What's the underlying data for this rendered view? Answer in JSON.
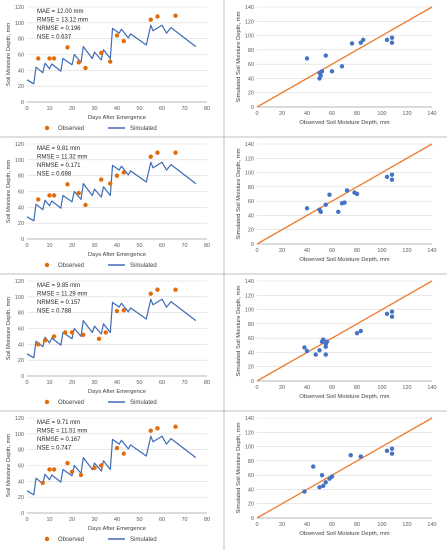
{
  "figure": {
    "ts_xlabel": "Days After Emergence",
    "ts_ylabel": "Soil Moisture Depth, mm",
    "sc_xlabel": "Observed Soil Moisture Depth, mm",
    "sc_ylabel": "Simulated Soil Moisture Depth, mm",
    "legend": {
      "observed": "Observed",
      "simulated": "Simulated"
    },
    "colors": {
      "observed": "#e36c0a",
      "simulated": "#3f6bb5",
      "scatter_points": "#4472c4",
      "one_to_one_line": "#ed7d31",
      "grid": "#d9d9d9",
      "border": "#bfbfbf"
    }
  },
  "chart_data": [
    {
      "type": "line",
      "panel": "row1-time-series",
      "stats": [
        "MAE = 12.00 mm",
        "RMSE = 13.12 mm",
        "NRMSE = 0.196",
        "NSE = 0.637"
      ],
      "xlim": [
        0,
        80
      ],
      "ylim": [
        0,
        120
      ],
      "xticks": [
        0,
        10,
        20,
        30,
        40,
        50,
        60,
        70,
        80
      ],
      "yticks": [
        0,
        20,
        40,
        60,
        80,
        100,
        120
      ],
      "series": [
        {
          "name": "Observed",
          "kind": "scatter",
          "x": [
            5,
            10,
            12,
            18,
            23,
            26,
            33,
            37,
            40,
            43,
            55,
            58,
            66
          ],
          "y": [
            55,
            55,
            55,
            69,
            50,
            43,
            62,
            51,
            84,
            77,
            104,
            108,
            109
          ]
        },
        {
          "name": "Simulated",
          "kind": "line",
          "x": [
            0,
            3,
            4,
            7,
            8,
            10,
            11,
            15,
            16,
            20,
            21,
            24,
            25,
            29,
            30,
            33,
            34,
            37,
            38,
            41,
            42,
            45,
            46,
            53,
            55,
            56,
            60,
            62,
            64,
            75
          ],
          "y": [
            28,
            23,
            44,
            37,
            49,
            42,
            48,
            39,
            55,
            47,
            60,
            50,
            70,
            55,
            63,
            53,
            66,
            55,
            93,
            87,
            92,
            81,
            86,
            72,
            97,
            90,
            97,
            87,
            94,
            70
          ]
        }
      ]
    },
    {
      "type": "scatter",
      "panel": "row1-observed-vs-simulated",
      "xlim": [
        0,
        140
      ],
      "ylim": [
        0,
        140
      ],
      "xticks": [
        0,
        20,
        40,
        60,
        80,
        100,
        120,
        140
      ],
      "yticks": [
        0,
        20,
        40,
        60,
        80,
        100,
        120,
        140
      ],
      "x": [
        40,
        50,
        51,
        50,
        52,
        55,
        60,
        68,
        76,
        83,
        85,
        104,
        108,
        108
      ],
      "y": [
        68,
        40,
        44,
        48,
        50,
        72,
        50,
        57,
        89,
        90,
        94,
        94,
        90,
        97
      ]
    },
    {
      "type": "line",
      "panel": "row2-time-series",
      "stats": [
        "MAE = 9.81 mm",
        "RMSE = 11.32 mm",
        "NRMSE = 0.171",
        "NSE = 0.698"
      ],
      "xlim": [
        0,
        80
      ],
      "ylim": [
        0,
        120
      ],
      "xticks": [
        0,
        10,
        20,
        30,
        40,
        50,
        60,
        70,
        80
      ],
      "yticks": [
        0,
        20,
        40,
        60,
        80,
        100,
        120
      ],
      "series": [
        {
          "name": "Observed",
          "kind": "scatter",
          "x": [
            5,
            10,
            12,
            18,
            23,
            26,
            33,
            37,
            40,
            43,
            55,
            58,
            66
          ],
          "y": [
            50,
            55,
            55,
            69,
            58,
            43,
            75,
            70,
            80,
            84,
            104,
            109,
            109
          ]
        },
        {
          "name": "Simulated",
          "kind": "line",
          "x": [
            0,
            3,
            4,
            7,
            8,
            10,
            11,
            15,
            16,
            20,
            21,
            24,
            25,
            29,
            30,
            33,
            34,
            37,
            38,
            41,
            42,
            45,
            46,
            53,
            55,
            56,
            60,
            62,
            64,
            75
          ],
          "y": [
            28,
            23,
            44,
            37,
            49,
            42,
            48,
            39,
            55,
            47,
            60,
            50,
            70,
            55,
            63,
            53,
            66,
            55,
            93,
            87,
            92,
            81,
            86,
            72,
            97,
            90,
            97,
            87,
            94,
            70
          ]
        }
      ]
    },
    {
      "type": "scatter",
      "panel": "row2-observed-vs-simulated",
      "xlim": [
        0,
        140
      ],
      "ylim": [
        0,
        140
      ],
      "xticks": [
        0,
        20,
        40,
        60,
        80,
        100,
        120,
        140
      ],
      "yticks": [
        0,
        20,
        40,
        60,
        80,
        100,
        120,
        140
      ],
      "x": [
        40,
        50,
        51,
        55,
        58,
        65,
        68,
        70,
        72,
        78,
        80,
        104,
        108,
        108
      ],
      "y": [
        50,
        48,
        45,
        55,
        69,
        45,
        57,
        58,
        75,
        72,
        70,
        94,
        90,
        97
      ]
    },
    {
      "type": "line",
      "panel": "row3-time-series",
      "stats": [
        "MAE = 9.85 mm",
        "RMSE = 11.29 mm",
        "NRMSE = 0.157",
        "NSE = 0.788"
      ],
      "xlim": [
        0,
        80
      ],
      "ylim": [
        0,
        120
      ],
      "xticks": [
        0,
        10,
        20,
        30,
        40,
        50,
        60,
        70,
        80
      ],
      "yticks": [
        0,
        20,
        40,
        60,
        80,
        100,
        120
      ],
      "series": [
        {
          "name": "Observed",
          "kind": "scatter",
          "x": [
            5,
            8,
            12,
            17,
            20,
            25,
            32,
            35,
            40,
            43,
            55,
            58,
            66
          ],
          "y": [
            40,
            45,
            50,
            55,
            55,
            52,
            47,
            55,
            82,
            83,
            104,
            109,
            109
          ]
        },
        {
          "name": "Simulated",
          "kind": "line",
          "x": [
            0,
            3,
            4,
            7,
            8,
            10,
            11,
            15,
            16,
            20,
            21,
            24,
            25,
            29,
            30,
            33,
            34,
            37,
            38,
            41,
            42,
            45,
            46,
            53,
            55,
            56,
            60,
            62,
            64,
            75
          ],
          "y": [
            28,
            23,
            44,
            37,
            49,
            42,
            48,
            39,
            55,
            47,
            60,
            50,
            70,
            55,
            63,
            53,
            66,
            55,
            93,
            87,
            92,
            81,
            86,
            72,
            97,
            90,
            97,
            87,
            94,
            70
          ]
        }
      ]
    },
    {
      "type": "scatter",
      "panel": "row3-observed-vs-simulated",
      "xlim": [
        0,
        140
      ],
      "ylim": [
        0,
        140
      ],
      "xticks": [
        0,
        20,
        40,
        60,
        80,
        100,
        120,
        140
      ],
      "yticks": [
        0,
        20,
        40,
        60,
        80,
        100,
        120,
        140
      ],
      "x": [
        38,
        40,
        47,
        50,
        52,
        53,
        55,
        55,
        55,
        56,
        80,
        83,
        104,
        108,
        108
      ],
      "y": [
        47,
        42,
        37,
        43,
        55,
        58,
        52,
        37,
        48,
        55,
        67,
        70,
        94,
        90,
        97
      ]
    },
    {
      "type": "line",
      "panel": "row4-time-series",
      "stats": [
        "MAE = 9.71 mm",
        "RMSE = 11.51 mm",
        "NRMSE = 0.167",
        "NSE = 0.747"
      ],
      "xlim": [
        0,
        80
      ],
      "ylim": [
        0,
        120
      ],
      "xticks": [
        0,
        10,
        20,
        30,
        40,
        50,
        60,
        70,
        80
      ],
      "yticks": [
        0,
        20,
        40,
        60,
        80,
        100,
        120
      ],
      "series": [
        {
          "name": "Observed",
          "kind": "scatter",
          "x": [
            7,
            10,
            12,
            18,
            20,
            24,
            30,
            33,
            40,
            43,
            55,
            58,
            66
          ],
          "y": [
            38,
            55,
            55,
            63,
            52,
            48,
            57,
            60,
            82,
            75,
            104,
            107,
            109
          ]
        },
        {
          "name": "Simulated",
          "kind": "line",
          "x": [
            0,
            3,
            4,
            7,
            8,
            10,
            11,
            15,
            16,
            20,
            21,
            24,
            25,
            29,
            30,
            33,
            34,
            37,
            38,
            41,
            42,
            45,
            46,
            53,
            55,
            56,
            60,
            62,
            64,
            75
          ],
          "y": [
            28,
            23,
            44,
            37,
            49,
            42,
            48,
            39,
            55,
            47,
            60,
            50,
            70,
            55,
            63,
            53,
            66,
            55,
            93,
            87,
            92,
            81,
            86,
            72,
            97,
            90,
            97,
            87,
            94,
            70
          ]
        }
      ]
    },
    {
      "type": "scatter",
      "panel": "row4-observed-vs-simulated",
      "xlim": [
        0,
        140
      ],
      "ylim": [
        0,
        140
      ],
      "xticks": [
        0,
        20,
        40,
        60,
        80,
        100,
        120,
        140
      ],
      "yticks": [
        0,
        20,
        40,
        60,
        80,
        100,
        120,
        140
      ],
      "x": [
        38,
        45,
        50,
        52,
        53,
        55,
        58,
        60,
        75,
        83,
        104,
        108,
        108
      ],
      "y": [
        37,
        72,
        43,
        60,
        45,
        50,
        55,
        58,
        88,
        86,
        94,
        90,
        97
      ]
    }
  ]
}
